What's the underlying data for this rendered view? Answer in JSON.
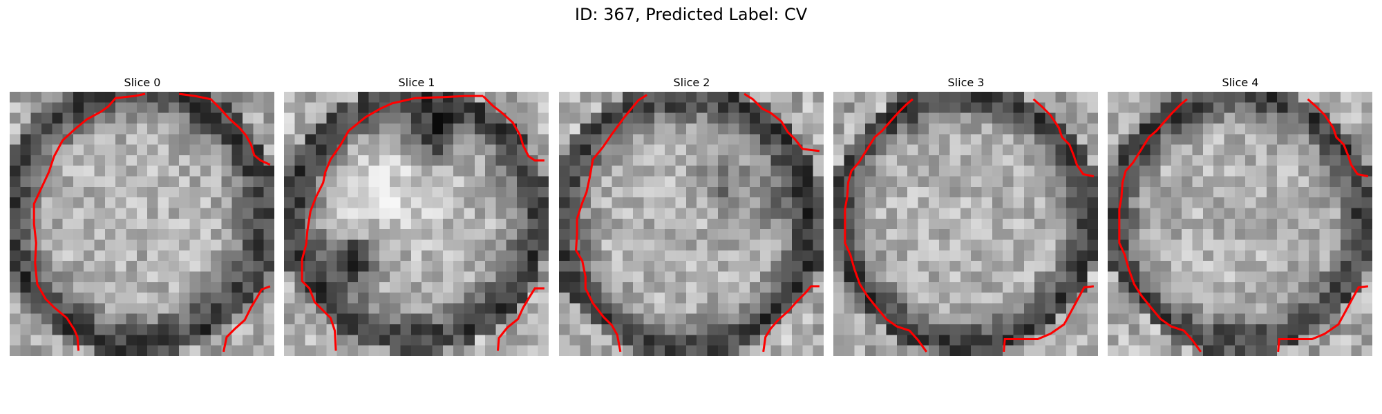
{
  "figure": {
    "title": "ID: 367, Predicted Label: CV",
    "contour_color": "#ff0000"
  },
  "panels": [
    {
      "title": "Slice 0"
    },
    {
      "title": "Slice 1"
    },
    {
      "title": "Slice 2"
    },
    {
      "title": "Slice 3"
    },
    {
      "title": "Slice 4"
    }
  ]
}
